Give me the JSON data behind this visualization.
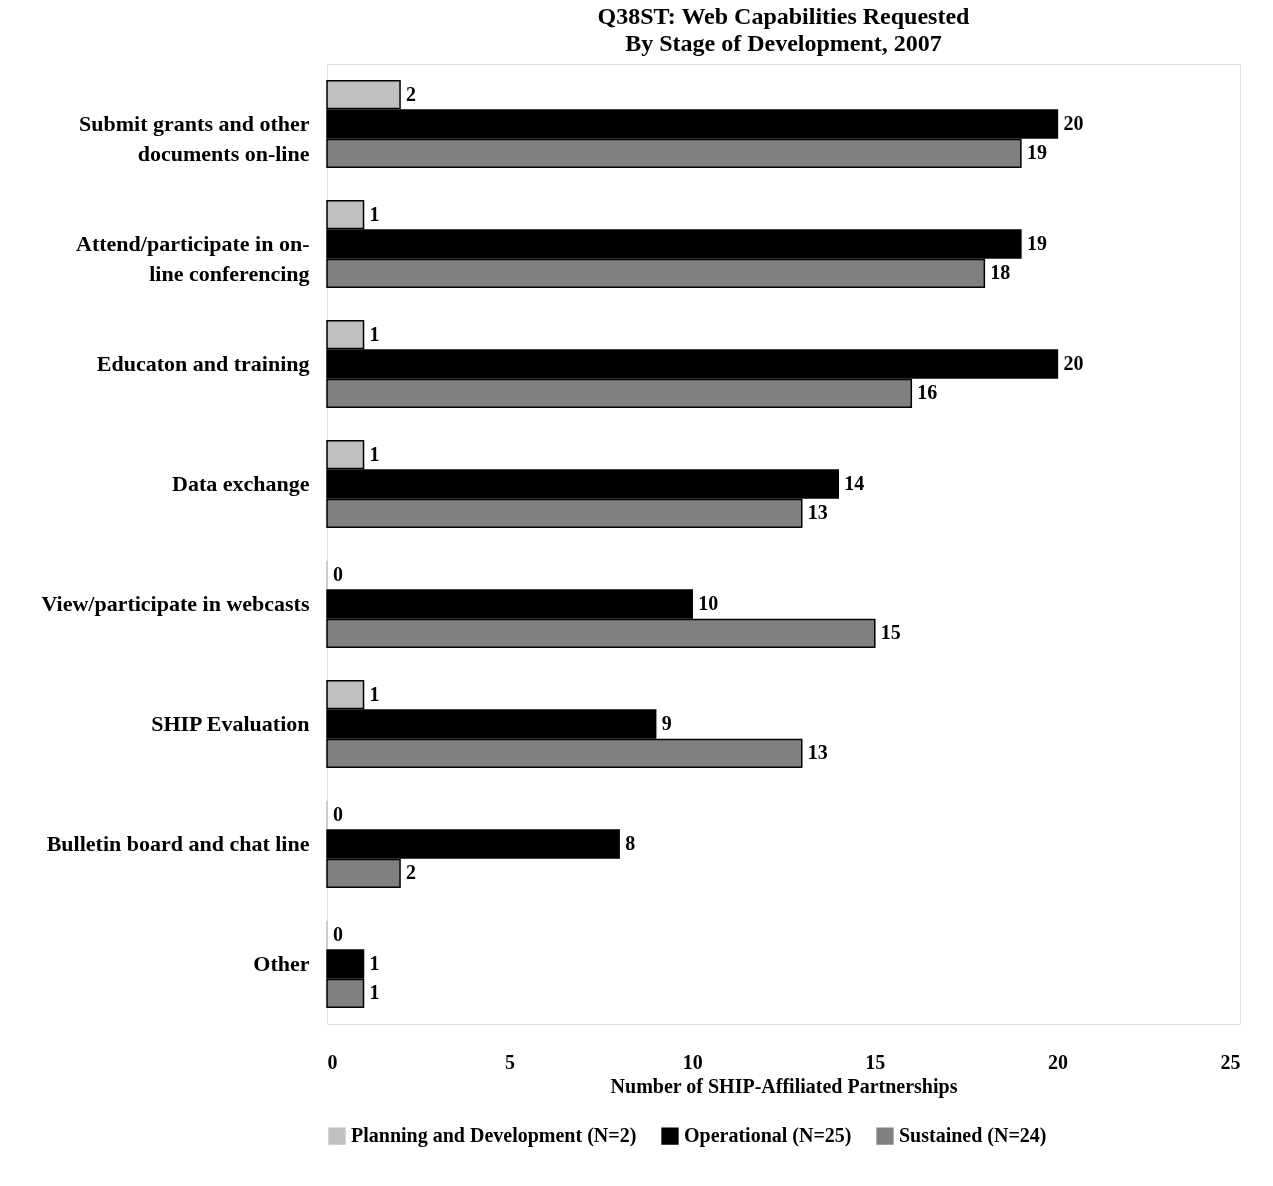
{
  "chart_data": {
    "type": "bar",
    "orientation": "horizontal",
    "title": "Q38ST: Web Capabilities Requested",
    "subtitle": "By Stage of Development, 2007",
    "categories": [
      "Submit grants and other documents on-line",
      "Attend/participate in on-line conferencing",
      "Educaton and training",
      "Data exchange",
      "View/participate in webcasts",
      "SHIP Evaluation",
      "Bulletin board and chat line",
      "Other"
    ],
    "series": [
      {
        "name": "Planning and Development (N=2)",
        "color": "#c0c0c0",
        "values": [
          2,
          1,
          1,
          1,
          0,
          1,
          0,
          0
        ]
      },
      {
        "name": "Operational (N=25)",
        "color": "#000000",
        "values": [
          20,
          19,
          20,
          14,
          10,
          9,
          8,
          1
        ]
      },
      {
        "name": "Sustained (N=24)",
        "color": "#808080",
        "values": [
          19,
          18,
          16,
          13,
          15,
          13,
          2,
          1
        ]
      }
    ],
    "xlabel": "Number of SHIP-Affiliated Partnerships",
    "xlim": [
      0,
      25
    ],
    "xticks": [
      0,
      5,
      10,
      15,
      20,
      25
    ],
    "data_labels": true,
    "legend": "bottom",
    "grid": false
  }
}
